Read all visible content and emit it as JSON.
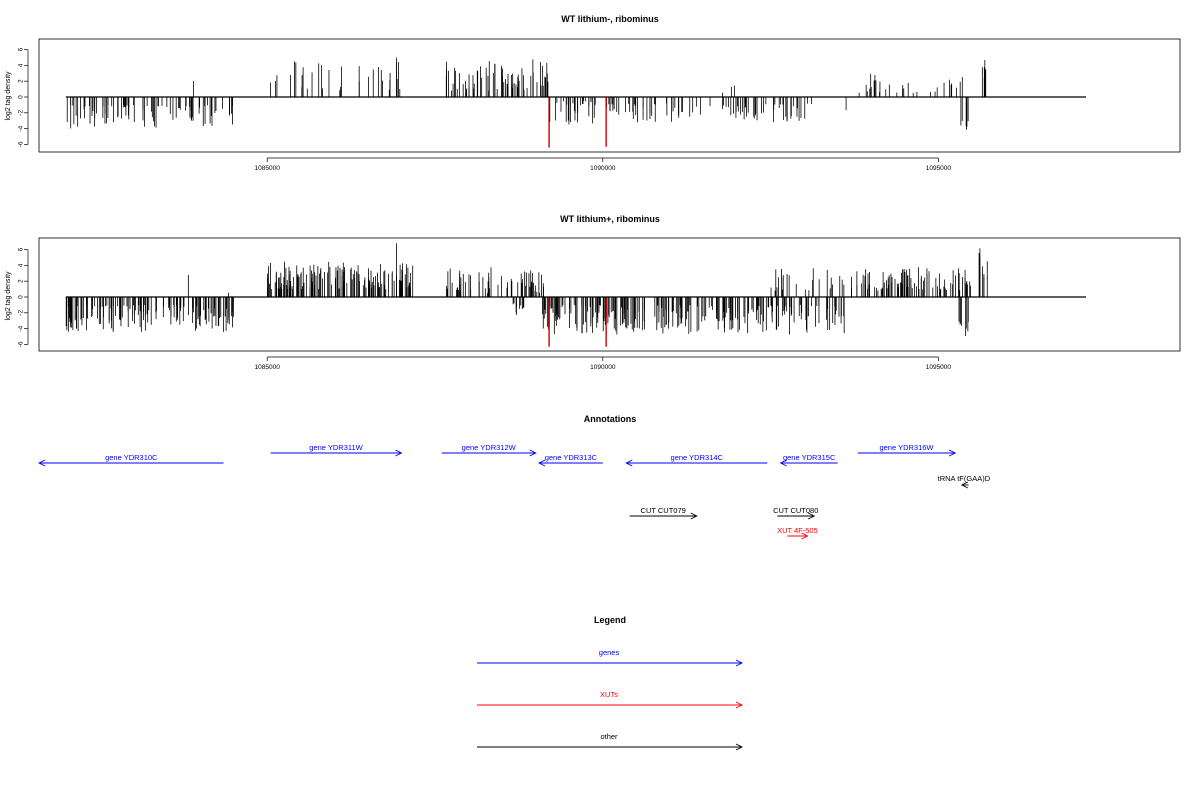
{
  "chart_data": [
    {
      "type": "bar",
      "title": "WT lithium-, ribominus",
      "ylabel": "log2 tag density",
      "xlim": [
        1081600,
        1098600
      ],
      "ylim": [
        -7,
        7
      ],
      "x_ticks": [
        1085000,
        1090000,
        1095000
      ],
      "y_ticks": [
        -6,
        -4,
        -2,
        0,
        2,
        4,
        6
      ],
      "baseline_range": [
        1082000,
        1097200
      ],
      "highlight_color": "#cc0000",
      "bar_color": "#000000",
      "highlight_bars": [
        {
          "x": 1089200,
          "y": -6.4
        },
        {
          "x": 1090050,
          "y": -6.3
        }
      ],
      "segments": [
        {
          "from": 1082000,
          "to": 1084500,
          "min": 1.0,
          "max": 4.0,
          "sign": -1,
          "n": 90
        },
        {
          "from": 1083850,
          "to": 1083950,
          "min": 2.0,
          "max": 2.7,
          "sign": 1,
          "n": 1
        },
        {
          "from": 1085050,
          "to": 1087000,
          "min": 0.8,
          "max": 4.5,
          "sign": 1,
          "n": 32
        },
        {
          "from": 1086900,
          "to": 1086950,
          "min": 5.0,
          "max": 5.0,
          "sign": 1,
          "n": 1
        },
        {
          "from": 1087650,
          "to": 1089200,
          "min": 0.8,
          "max": 4.8,
          "sign": 1,
          "n": 70
        },
        {
          "from": 1089200,
          "to": 1089900,
          "min": 0.5,
          "max": 3.5,
          "sign": -1,
          "n": 30
        },
        {
          "from": 1090000,
          "to": 1093200,
          "min": 0.8,
          "max": 3.2,
          "sign": -1,
          "n": 90
        },
        {
          "from": 1091700,
          "to": 1092100,
          "min": 0.5,
          "max": 1.5,
          "sign": 1,
          "n": 3
        },
        {
          "from": 1093800,
          "to": 1095400,
          "min": 0.5,
          "max": 3.0,
          "sign": 1,
          "n": 30
        },
        {
          "from": 1093600,
          "to": 1093650,
          "min": 1.5,
          "max": 2.5,
          "sign": -1,
          "n": 1
        },
        {
          "from": 1095300,
          "to": 1095450,
          "min": 3.0,
          "max": 4.8,
          "sign": -1,
          "n": 6
        },
        {
          "from": 1095650,
          "to": 1095750,
          "min": 2.0,
          "max": 4.8,
          "sign": 1,
          "n": 6
        }
      ]
    },
    {
      "type": "bar",
      "title": "WT lithium+, ribominus",
      "ylabel": "log2 tag density",
      "xlim": [
        1081600,
        1098600
      ],
      "ylim": [
        -7,
        7
      ],
      "x_ticks": [
        1085000,
        1090000,
        1095000
      ],
      "y_ticks": [
        -6,
        -4,
        -2,
        0,
        2,
        4,
        6
      ],
      "baseline_range": [
        1082000,
        1097200
      ],
      "highlight_color": "#cc0000",
      "bar_color": "#000000",
      "highlight_bars": [
        {
          "x": 1089200,
          "y": -6.3
        },
        {
          "x": 1090050,
          "y": -6.3
        }
      ],
      "segments": [
        {
          "from": 1082000,
          "to": 1084500,
          "min": 1.0,
          "max": 4.5,
          "sign": -1,
          "n": 150
        },
        {
          "from": 1083800,
          "to": 1083850,
          "min": 2.8,
          "max": 2.8,
          "sign": 1,
          "n": 1
        },
        {
          "from": 1084400,
          "to": 1084450,
          "min": 0.5,
          "max": 0.8,
          "sign": 1,
          "n": 1
        },
        {
          "from": 1085000,
          "to": 1087200,
          "min": 1.0,
          "max": 4.5,
          "sign": 1,
          "n": 150
        },
        {
          "from": 1086900,
          "to": 1086950,
          "min": 6.8,
          "max": 6.8,
          "sign": 1,
          "n": 1
        },
        {
          "from": 1087650,
          "to": 1089150,
          "min": 0.5,
          "max": 3.8,
          "sign": 1,
          "n": 60
        },
        {
          "from": 1088600,
          "to": 1089000,
          "min": 0.8,
          "max": 2.5,
          "sign": -1,
          "n": 10
        },
        {
          "from": 1089100,
          "to": 1093600,
          "min": 1.0,
          "max": 4.8,
          "sign": -1,
          "n": 260
        },
        {
          "from": 1092500,
          "to": 1093600,
          "min": 0.8,
          "max": 3.8,
          "sign": 1,
          "n": 25
        },
        {
          "from": 1093700,
          "to": 1095500,
          "min": 0.8,
          "max": 3.8,
          "sign": 1,
          "n": 90
        },
        {
          "from": 1095300,
          "to": 1095450,
          "min": 3.0,
          "max": 5.0,
          "sign": -1,
          "n": 8
        },
        {
          "from": 1095600,
          "to": 1095750,
          "min": 2.0,
          "max": 6.8,
          "sign": 1,
          "n": 8
        }
      ]
    }
  ],
  "annotations": {
    "title": "Annotations",
    "xlim": [
      1081600,
      1098600
    ],
    "features": [
      {
        "label": "gene YDR310C",
        "start": 1081600,
        "end": 1084350,
        "strand": "-",
        "row": 2,
        "color": "#0000ff"
      },
      {
        "label": "gene YDR311W",
        "start": 1085050,
        "end": 1087000,
        "strand": "+",
        "row": 1,
        "color": "#0000ff"
      },
      {
        "label": "gene YDR312W",
        "start": 1087600,
        "end": 1089000,
        "strand": "+",
        "row": 1,
        "color": "#0000ff"
      },
      {
        "label": "gene YDR313C",
        "start": 1089050,
        "end": 1090000,
        "strand": "-",
        "row": 2,
        "color": "#0000ff"
      },
      {
        "label": "gene YDR314C",
        "start": 1090350,
        "end": 1092450,
        "strand": "-",
        "row": 2,
        "color": "#0000ff"
      },
      {
        "label": "gene YDR315C",
        "start": 1092650,
        "end": 1093500,
        "strand": "-",
        "row": 2,
        "color": "#0000ff"
      },
      {
        "label": "gene YDR316W",
        "start": 1093800,
        "end": 1095250,
        "strand": "+",
        "row": 1,
        "color": "#0000ff"
      },
      {
        "label": "tRNA tF(GAA)D",
        "start": 1095350,
        "end": 1095450,
        "strand": "-",
        "row": 3,
        "color": "#000000"
      },
      {
        "label": "CUT CUT079",
        "start": 1090400,
        "end": 1091400,
        "strand": "+",
        "row": 4,
        "color": "#000000"
      },
      {
        "label": "CUT CUT080",
        "start": 1092600,
        "end": 1093150,
        "strand": "+",
        "row": 4,
        "color": "#000000"
      },
      {
        "label": "XUT 4F-505",
        "start": 1092750,
        "end": 1093050,
        "strand": "+",
        "row": 5,
        "color": "#ff0000"
      }
    ]
  },
  "legend": {
    "title": "Legend",
    "items": [
      {
        "label": "genes",
        "color": "#0000ff"
      },
      {
        "label": "XUTs",
        "color": "#ff0000"
      },
      {
        "label": "other",
        "color": "#000000"
      }
    ]
  }
}
